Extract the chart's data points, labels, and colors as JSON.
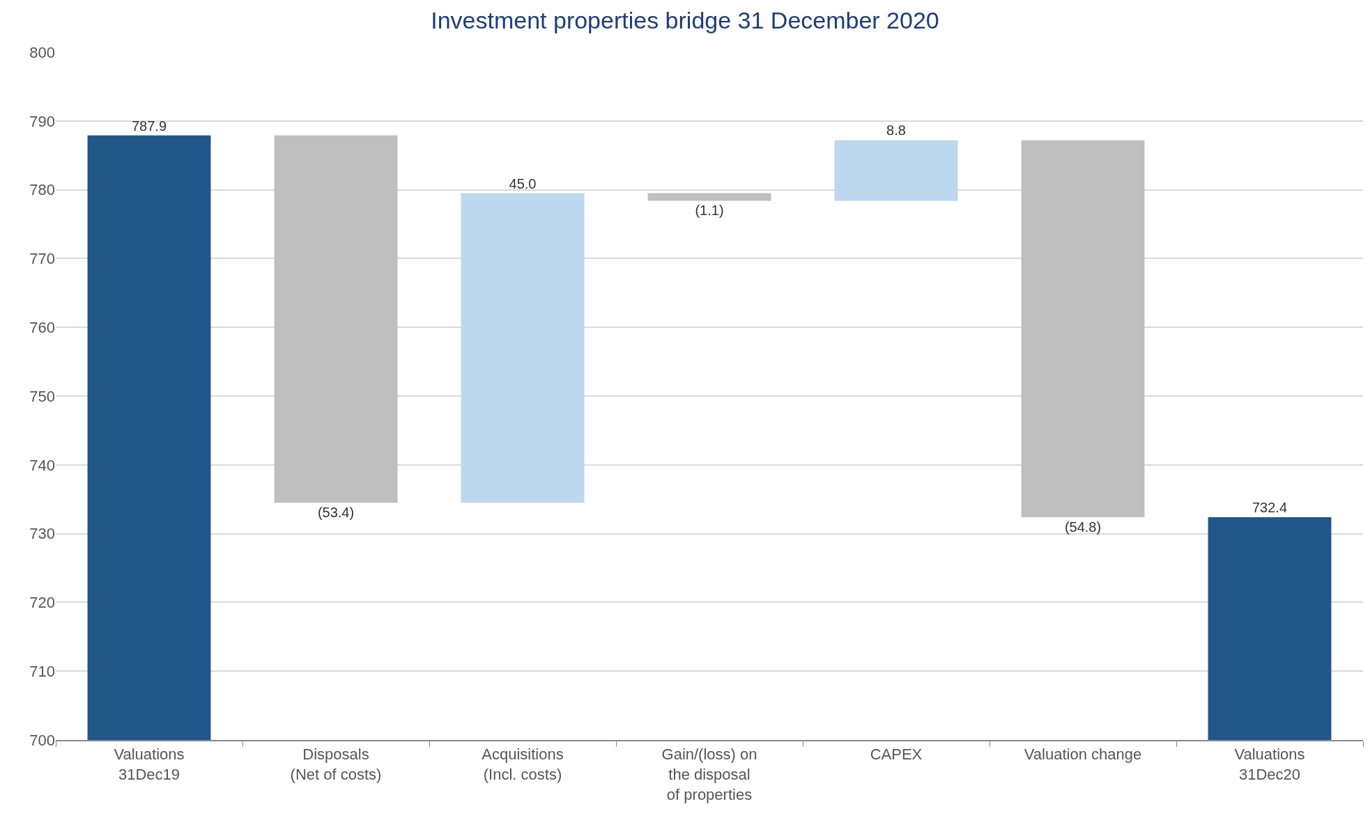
{
  "chart_data": {
    "type": "bar",
    "title": "Investment properties bridge 31 December 2020",
    "categories": [
      "Valuations\n31Dec19",
      "Disposals\n(Net of costs)",
      "Acquisitions\n(Incl. costs)",
      "Gain/(loss) on\nthe disposal\nof properties",
      "CAPEX",
      "Valuation change",
      "Valuations\n31Dec20"
    ],
    "values": [
      787.9,
      -53.4,
      45.0,
      -1.1,
      8.8,
      -54.8,
      732.4
    ],
    "base": [
      null,
      787.9,
      734.5,
      779.5,
      778.4,
      787.2,
      null
    ],
    "colors": [
      "#22578a",
      "#bfbfbf",
      "#bdd7ee",
      "#bfbfbf",
      "#bdd7ee",
      "#bfbfbf",
      "#22578a"
    ],
    "value_labels": [
      "787.9",
      "(53.4)",
      "45.0",
      "(1.1)",
      "8.8",
      "(54.8)",
      "732.4"
    ],
    "ylim": [
      700,
      800
    ],
    "yticks": [
      700,
      710,
      720,
      730,
      740,
      750,
      760,
      770,
      780,
      790,
      800
    ],
    "grid": "y",
    "legend": false
  }
}
